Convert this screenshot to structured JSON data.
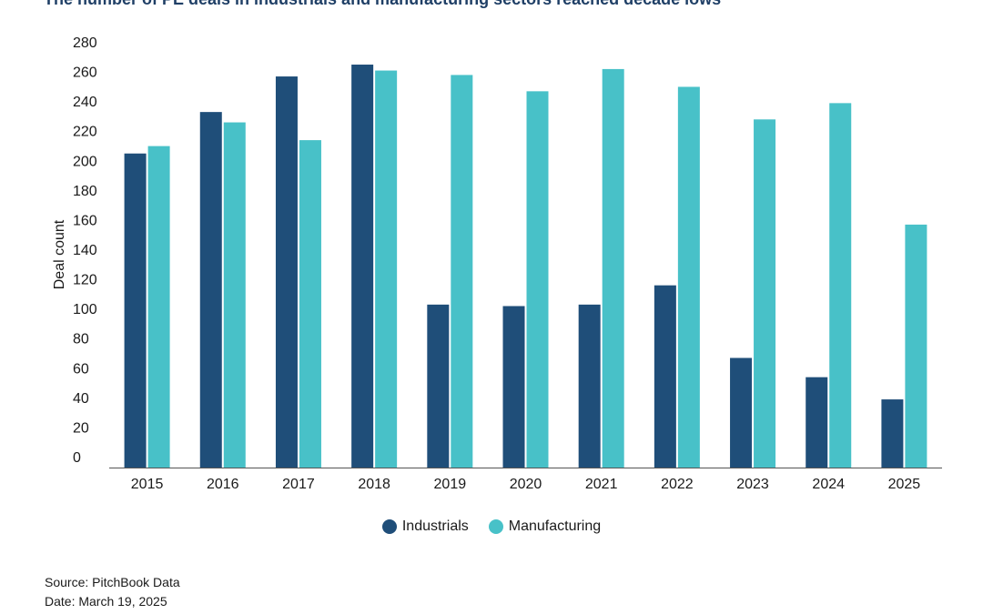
{
  "title": "The number of PE deals in industrials and manufacturing sectors reached decade lows",
  "source": "Source: PitchBook Data",
  "date": "Date: March 19, 2025",
  "chart_data": {
    "type": "bar",
    "categories": [
      "2015",
      "2016",
      "2017",
      "2018",
      "2019",
      "2020",
      "2021",
      "2022",
      "2023",
      "2024",
      "2025"
    ],
    "series": [
      {
        "name": "Industrials",
        "color": "#1f4e79",
        "values": [
          212,
          240,
          264,
          272,
          110,
          109,
          110,
          123,
          74,
          61,
          46
        ]
      },
      {
        "name": "Manufacturing",
        "color": "#48c1c8",
        "values": [
          217,
          233,
          221,
          268,
          265,
          254,
          269,
          257,
          235,
          246,
          164
        ]
      }
    ],
    "xlabel": "",
    "ylabel": "Deal count",
    "ylim": [
      0,
      280
    ],
    "yticks": [
      0,
      20,
      40,
      60,
      80,
      100,
      120,
      140,
      160,
      180,
      200,
      220,
      240,
      260,
      280
    ],
    "grid": false,
    "legend_position": "bottom-center"
  }
}
